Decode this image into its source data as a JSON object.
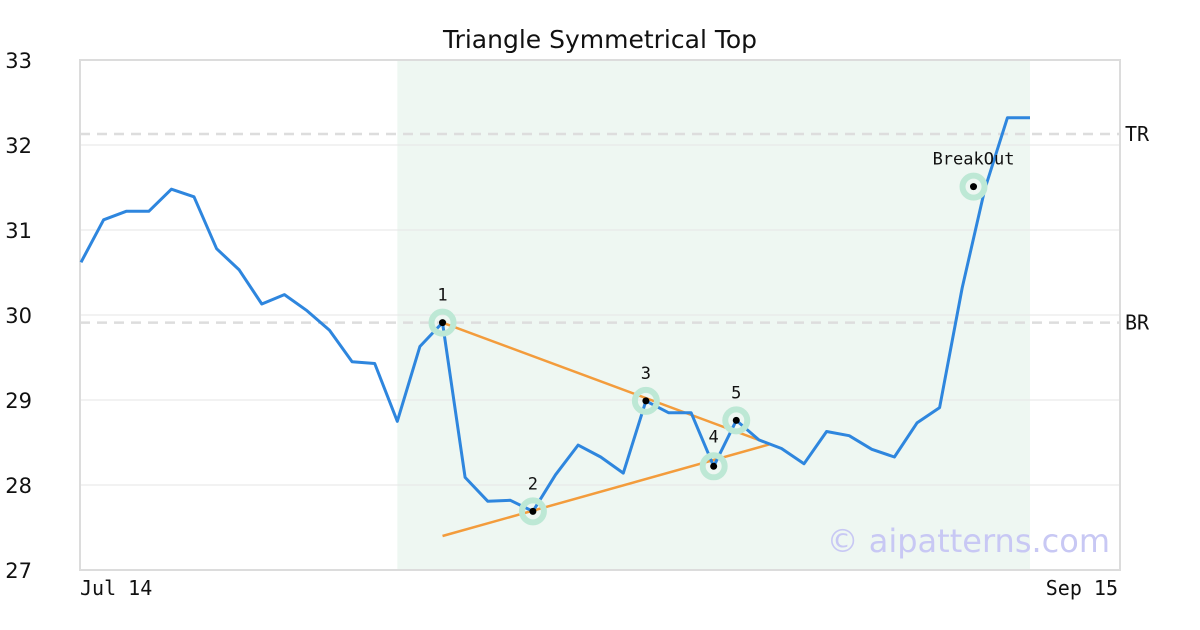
{
  "chart_data": {
    "type": "line",
    "title": "Triangle Symmetrical Top",
    "ylim": [
      27,
      33
    ],
    "yticks": [
      27,
      28,
      29,
      30,
      31,
      32,
      33
    ],
    "x_start_label": "Jul 14",
    "x_end_label": "Sep 15",
    "grid": true,
    "colors": {
      "price": "#2e86de",
      "trendline": "#f39c3c",
      "marker_halo": "#bde8d5",
      "highlight": "#eef7f2",
      "reference": "#dddddd"
    },
    "series": [
      {
        "values": [
          30.62,
          31.12,
          31.22,
          31.22,
          31.48,
          31.39,
          30.78,
          30.53,
          30.13,
          30.24,
          30.05,
          29.82,
          29.45,
          29.43,
          28.75,
          29.63,
          29.91,
          28.09,
          27.81,
          27.82,
          27.69,
          28.12,
          28.47,
          28.33,
          28.14,
          28.99,
          28.85,
          28.85,
          28.22,
          28.76,
          28.53,
          28.43,
          28.25,
          28.63,
          28.58,
          28.42,
          28.33,
          28.73,
          28.91,
          30.32,
          31.48,
          32.32,
          32.32
        ]
      }
    ],
    "highlight_range": {
      "start_index": 14,
      "end_index": 42
    },
    "reference_lines": [
      {
        "label": "TR",
        "value": 32.13
      },
      {
        "label": "BR",
        "value": 29.91
      }
    ],
    "points": [
      {
        "label": "1",
        "index": 16,
        "value": 29.91
      },
      {
        "label": "2",
        "index": 20,
        "value": 27.69
      },
      {
        "label": "3",
        "index": 25,
        "value": 28.99
      },
      {
        "label": "4",
        "index": 28,
        "value": 28.22
      },
      {
        "label": "5",
        "index": 29,
        "value": 28.76
      },
      {
        "label": "BreakOut",
        "index": 39.5,
        "value": 31.51
      }
    ],
    "trendlines": [
      {
        "from": {
          "index": 16,
          "value": 29.91
        },
        "to": {
          "index": 30.5,
          "value": 28.48
        }
      },
      {
        "from": {
          "index": 16,
          "value": 27.4
        },
        "to": {
          "index": 30.5,
          "value": 28.48
        }
      }
    ],
    "watermark": "© aipatterns.com"
  }
}
